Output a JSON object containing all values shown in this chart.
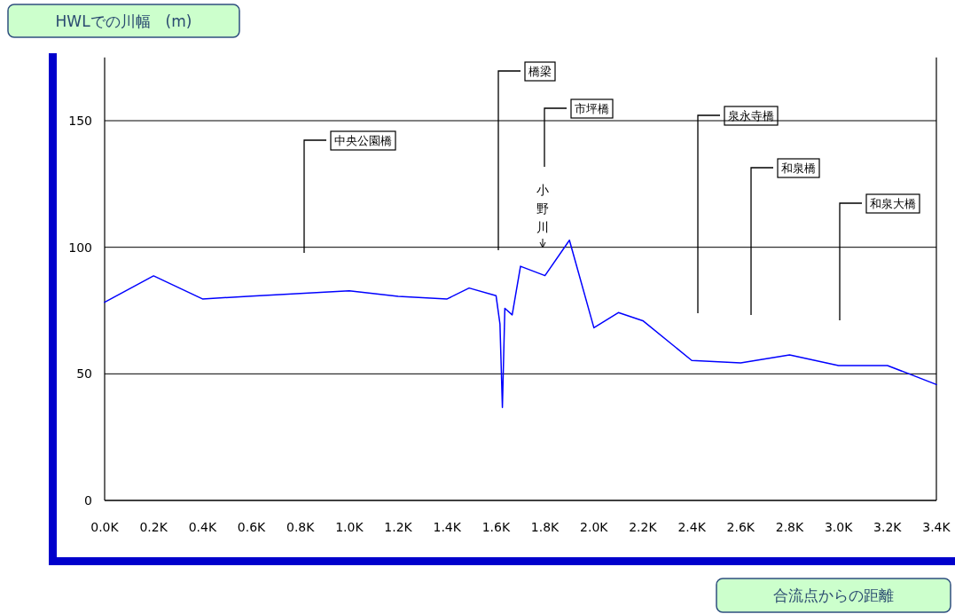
{
  "chart_data": {
    "type": "line",
    "xlabel": "合流点からの距離",
    "ylabel": "HWLでの川幅　(m)",
    "x": [
      0,
      0.2,
      0.4,
      0.6,
      1.0,
      1.2,
      1.4,
      1.49,
      1.6,
      1.616,
      1.626,
      1.636,
      1.666,
      1.7,
      1.8,
      1.9,
      2.0,
      2.1,
      2.2,
      2.4,
      2.6,
      2.8,
      3.0,
      3.2,
      3.4
    ],
    "series": [
      {
        "color": "#0000ff",
        "values": [
          78.3,
          88.7,
          79.6,
          80.7,
          82.8,
          80.6,
          79.6,
          83.9,
          80.9,
          69.7,
          36.7,
          75.9,
          73.3,
          92.5,
          88.8,
          102.8,
          68.2,
          74.2,
          71.0,
          55.3,
          54.3,
          57.5,
          53.3,
          53.3,
          45.8
        ]
      }
    ],
    "xlim": [
      0,
      3.4
    ],
    "ylim": [
      0,
      175
    ],
    "xticks": [
      {
        "value": 0,
        "label": "0.0K"
      },
      {
        "value": 0.2,
        "label": "0.2K"
      },
      {
        "value": 0.4,
        "label": "0.4K"
      },
      {
        "value": 0.6,
        "label": "0.6K"
      },
      {
        "value": 0.8,
        "label": "0.8K"
      },
      {
        "value": 1.0,
        "label": "1.0K"
      },
      {
        "value": 1.2,
        "label": "1.2K"
      },
      {
        "value": 1.4,
        "label": "1.4K"
      },
      {
        "value": 1.6,
        "label": "1.6K"
      },
      {
        "value": 1.8,
        "label": "1.8K"
      },
      {
        "value": 2.0,
        "label": "2.0K"
      },
      {
        "value": 2.2,
        "label": "2.2K"
      },
      {
        "value": 2.4,
        "label": "2.4K"
      },
      {
        "value": 2.6,
        "label": "2.6K"
      },
      {
        "value": 2.8,
        "label": "2.8K"
      },
      {
        "value": 3.0,
        "label": "3.0K"
      },
      {
        "value": 3.2,
        "label": "3.2K"
      },
      {
        "value": 3.4,
        "label": "3.4K"
      }
    ],
    "yticks": [
      0,
      50,
      100,
      150
    ],
    "grid": "y",
    "marker": "none",
    "line_style": "solid",
    "annotations": [
      "中央公園橋",
      "橋梁",
      "市坪橋",
      "小野川",
      "泉永寺橋",
      "和泉橋",
      "和泉大橋"
    ]
  }
}
